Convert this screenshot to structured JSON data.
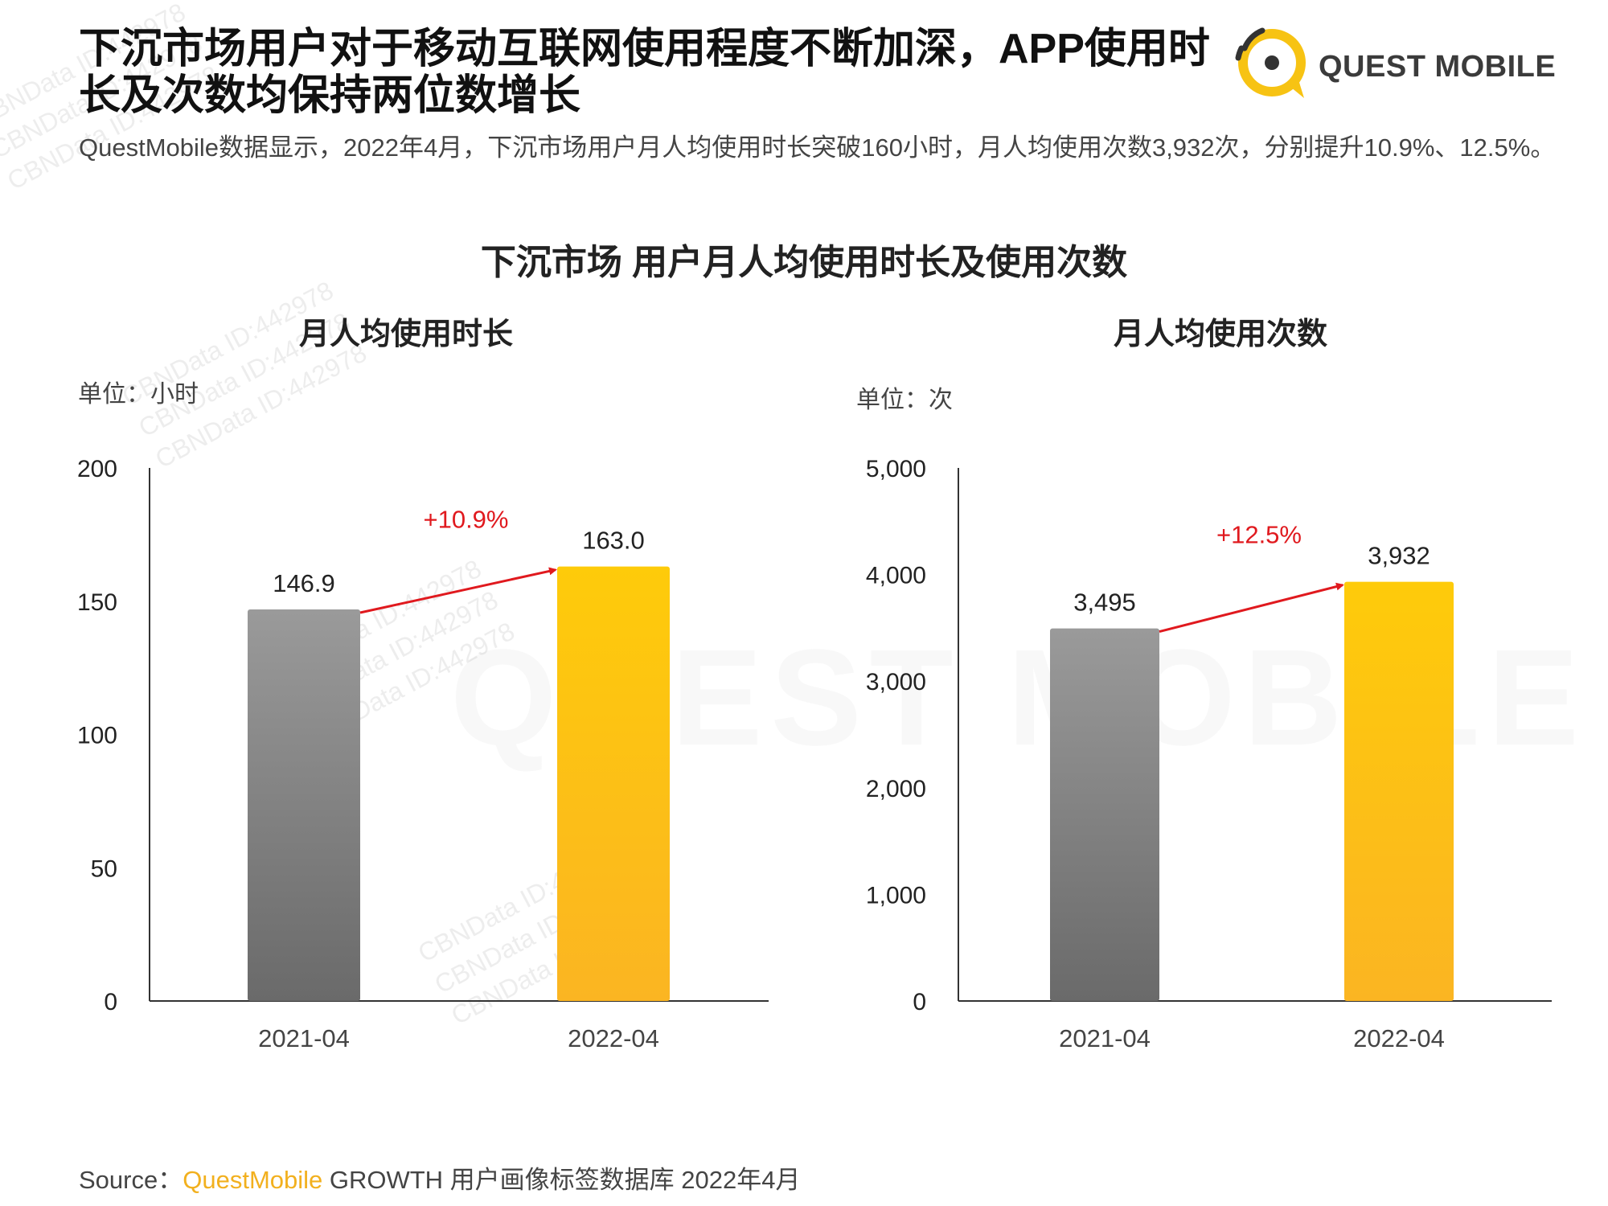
{
  "title": "下沉市场用户对于移动互联网使用程度不断加深，APP使用时长及次数均保持两位数增长",
  "brand": {
    "name": "QUEST MOBILE"
  },
  "subtitle": "QuestMobile数据显示，2022年4月，下沉市场用户月人均使用时长突破160小时，月人均使用次数3,932次，分别提升10.9%、12.5%。",
  "main_chart_title": "下沉市场 用户月人均使用时长及使用次数",
  "watermark": "CBNData ID:442978",
  "colors": {
    "bar_2021": "#8c8c8c",
    "bar_2022": "#fcc214",
    "growth_arrow": "#e0191e"
  },
  "chart_data": [
    {
      "type": "bar",
      "title": "月人均使用时长",
      "unit_label": "单位：小时",
      "categories": [
        "2021-04",
        "2022-04"
      ],
      "values": [
        146.9,
        163.0
      ],
      "value_labels": [
        "146.9",
        "163.0"
      ],
      "ylim": [
        0,
        200
      ],
      "yticks": [
        0,
        50,
        100,
        150,
        200
      ],
      "ytick_labels": [
        "0",
        "50",
        "100",
        "150",
        "200"
      ],
      "growth_label": "+10.9%",
      "grid": false
    },
    {
      "type": "bar",
      "title": "月人均使用次数",
      "unit_label": "单位：次",
      "categories": [
        "2021-04",
        "2022-04"
      ],
      "values": [
        3495,
        3932
      ],
      "value_labels": [
        "3,495",
        "3,932"
      ],
      "ylim": [
        0,
        5000
      ],
      "yticks": [
        0,
        1000,
        2000,
        3000,
        4000,
        5000
      ],
      "ytick_labels": [
        "0",
        "1,000",
        "2,000",
        "3,000",
        "4,000",
        "5,000"
      ],
      "growth_label": "+12.5%",
      "grid": false
    }
  ],
  "source": {
    "prefix": "Source：",
    "brand": "QuestMobile",
    "rest": " GROWTH 用户画像标签数据库 2022年4月"
  }
}
